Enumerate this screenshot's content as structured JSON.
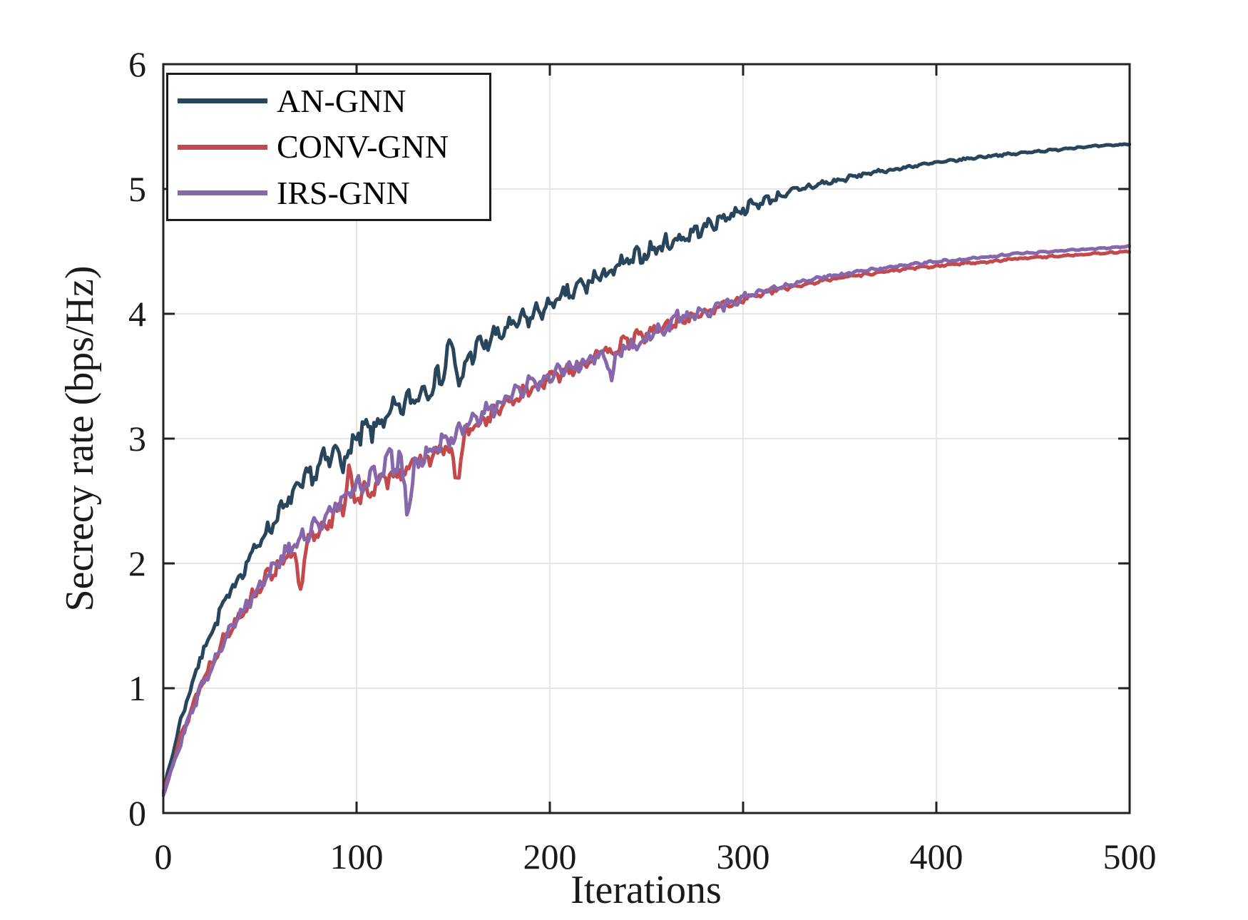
{
  "figure": {
    "background": "#ffffff",
    "axis_color": "#222222",
    "grid_color": "#e3e3e3",
    "text_color": "#1a1a1a"
  },
  "chart_data": {
    "type": "line",
    "title": "",
    "xlabel": "Iterations",
    "ylabel": "Secrecy rate (bps/Hz)",
    "xlim": [
      0,
      500
    ],
    "ylim": [
      0,
      6
    ],
    "x_ticks": [
      0,
      100,
      200,
      300,
      400,
      500
    ],
    "y_ticks": [
      0,
      1,
      2,
      3,
      4,
      5,
      6
    ],
    "grid": true,
    "box": true,
    "legend_position": "northwest",
    "x_step": 10,
    "series": [
      {
        "name": "AN-GNN",
        "color": "#29455B",
        "seed": 7,
        "trend": [
          0.17,
          0.8,
          1.28,
          1.63,
          1.92,
          2.18,
          2.4,
          2.6,
          2.76,
          2.9,
          3.0,
          3.1,
          3.22,
          3.33,
          3.45,
          3.58,
          3.7,
          3.8,
          3.9,
          3.98,
          4.07,
          4.16,
          4.25,
          4.33,
          4.41,
          4.49,
          4.56,
          4.62,
          4.69,
          4.77,
          4.84,
          4.9,
          4.95,
          5.0,
          5.04,
          5.07,
          5.11,
          5.14,
          5.16,
          5.19,
          5.21,
          5.23,
          5.25,
          5.27,
          5.28,
          5.3,
          5.31,
          5.33,
          5.34,
          5.35,
          5.36
        ],
        "noise_amp": [
          0.01,
          0.03,
          0.04,
          0.05,
          0.05,
          0.06,
          0.07,
          0.08,
          0.09,
          0.11,
          0.11,
          0.09,
          0.09,
          0.08,
          0.08,
          0.09,
          0.08,
          0.08,
          0.07,
          0.07,
          0.07,
          0.07,
          0.08,
          0.07,
          0.07,
          0.06,
          0.06,
          0.06,
          0.05,
          0.05,
          0.04,
          0.04,
          0.03,
          0.03,
          0.025,
          0.02,
          0.015,
          0.012,
          0.012,
          0.01,
          0.01,
          0.009,
          0.009,
          0.008,
          0.008,
          0.007,
          0.007,
          0.006,
          0.006,
          0.005,
          0.005
        ],
        "spikes": [
          {
            "x": 95,
            "dy": -0.15,
            "w": 2
          },
          {
            "x": 148,
            "dy": 0.22,
            "w": 2
          },
          {
            "x": 154,
            "dy": -0.18,
            "w": 2.5
          }
        ]
      },
      {
        "name": "CONV-GNN",
        "color": "#C24A4C",
        "seed": 13,
        "trend": [
          0.17,
          0.65,
          1.05,
          1.36,
          1.6,
          1.82,
          2.0,
          2.12,
          2.26,
          2.4,
          2.52,
          2.62,
          2.72,
          2.79,
          2.87,
          2.95,
          3.08,
          3.2,
          3.3,
          3.4,
          3.48,
          3.56,
          3.63,
          3.7,
          3.77,
          3.84,
          3.9,
          3.96,
          4.01,
          4.07,
          4.12,
          4.16,
          4.2,
          4.23,
          4.26,
          4.29,
          4.31,
          4.33,
          4.35,
          4.37,
          4.38,
          4.4,
          4.41,
          4.42,
          4.44,
          4.45,
          4.46,
          4.47,
          4.48,
          4.49,
          4.5
        ],
        "noise_amp": [
          0.01,
          0.03,
          0.04,
          0.04,
          0.05,
          0.05,
          0.06,
          0.07,
          0.06,
          0.06,
          0.09,
          0.06,
          0.06,
          0.07,
          0.06,
          0.06,
          0.06,
          0.05,
          0.05,
          0.05,
          0.05,
          0.05,
          0.05,
          0.05,
          0.05,
          0.05,
          0.04,
          0.04,
          0.04,
          0.03,
          0.025,
          0.02,
          0.015,
          0.012,
          0.01,
          0.01,
          0.01,
          0.009,
          0.009,
          0.008,
          0.008,
          0.008,
          0.007,
          0.007,
          0.006,
          0.006,
          0.006,
          0.005,
          0.005,
          0.005,
          0.005
        ],
        "spikes": [
          {
            "x": 71,
            "dy": -0.33,
            "w": 2.5
          },
          {
            "x": 96,
            "dy": 0.3,
            "w": 1.8
          },
          {
            "x": 152,
            "dy": -0.3,
            "w": 2.5
          }
        ]
      },
      {
        "name": "IRS-GNN",
        "color": "#8767AB",
        "seed": 29,
        "trend": [
          0.15,
          0.62,
          1.02,
          1.34,
          1.6,
          1.83,
          2.03,
          2.17,
          2.32,
          2.47,
          2.6,
          2.7,
          2.77,
          2.82,
          2.92,
          3.02,
          3.13,
          3.24,
          3.34,
          3.43,
          3.5,
          3.57,
          3.62,
          3.68,
          3.74,
          3.81,
          3.88,
          3.95,
          4.01,
          4.07,
          4.13,
          4.18,
          4.22,
          4.26,
          4.29,
          4.31,
          4.34,
          4.36,
          4.38,
          4.4,
          4.42,
          4.43,
          4.45,
          4.46,
          4.48,
          4.49,
          4.5,
          4.51,
          4.52,
          4.53,
          4.54
        ],
        "noise_amp": [
          0.01,
          0.03,
          0.04,
          0.04,
          0.05,
          0.05,
          0.06,
          0.07,
          0.06,
          0.07,
          0.08,
          0.08,
          0.11,
          0.09,
          0.07,
          0.06,
          0.06,
          0.06,
          0.06,
          0.06,
          0.05,
          0.05,
          0.06,
          0.07,
          0.06,
          0.05,
          0.07,
          0.06,
          0.05,
          0.04,
          0.03,
          0.02,
          0.015,
          0.012,
          0.01,
          0.01,
          0.01,
          0.009,
          0.009,
          0.008,
          0.008,
          0.008,
          0.007,
          0.007,
          0.006,
          0.006,
          0.006,
          0.005,
          0.005,
          0.005,
          0.005
        ],
        "spikes": [
          {
            "x": 117,
            "dy": 0.18,
            "w": 2
          },
          {
            "x": 127,
            "dy": -0.33,
            "w": 2.5
          },
          {
            "x": 232,
            "dy": -0.18,
            "w": 2.5
          },
          {
            "x": 265,
            "dy": 0.12,
            "w": 2
          }
        ]
      }
    ]
  }
}
